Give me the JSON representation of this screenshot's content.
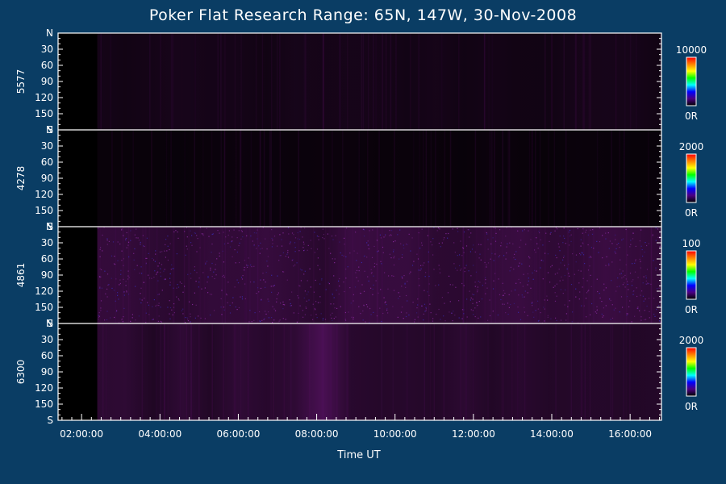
{
  "page": {
    "title": "Poker Flat Research Range: 65N, 147W, 30-Nov-2008"
  },
  "chart_data": {
    "type": "heatmap",
    "title": "Poker Flat Research Range: 65N, 147W, 30-Nov-2008",
    "xlabel": "Time UT",
    "x_ticks": [
      "02:00:00",
      "04:00:00",
      "06:00:00",
      "08:00:00",
      "10:00:00",
      "12:00:00",
      "14:00:00",
      "16:00:00"
    ],
    "x_tick_hours": [
      2,
      4,
      6,
      8,
      10,
      12,
      14,
      16
    ],
    "xlim_hours": [
      1.4,
      16.8
    ],
    "data_start_hour": 2.4,
    "y_tick_labels": [
      "N",
      "30",
      "60",
      "90",
      "120",
      "150",
      "S"
    ],
    "y_tick_values": [
      0,
      30,
      60,
      90,
      120,
      150,
      180
    ],
    "ylim": [
      0,
      180
    ],
    "colormap": [
      "#000000",
      "#4b0082",
      "#0000ff",
      "#00ffff",
      "#00ff00",
      "#ffff00",
      "#ff8000",
      "#ff0000"
    ],
    "panels": [
      {
        "name": "5577",
        "color_max": "10000",
        "color_min": "0R",
        "intensity_fraction": 0.04,
        "brightening_hour": null
      },
      {
        "name": "4278",
        "color_max": "2000",
        "color_min": "0R",
        "intensity_fraction": 0.02,
        "brightening_hour": null
      },
      {
        "name": "4861",
        "color_max": "100",
        "color_min": "0R",
        "intensity_fraction": 0.1,
        "speckled": true,
        "brightening_hour": null
      },
      {
        "name": "6300",
        "color_max": "2000",
        "color_min": "0R",
        "intensity_fraction": 0.08,
        "brightening_hour": 8.3
      }
    ]
  }
}
